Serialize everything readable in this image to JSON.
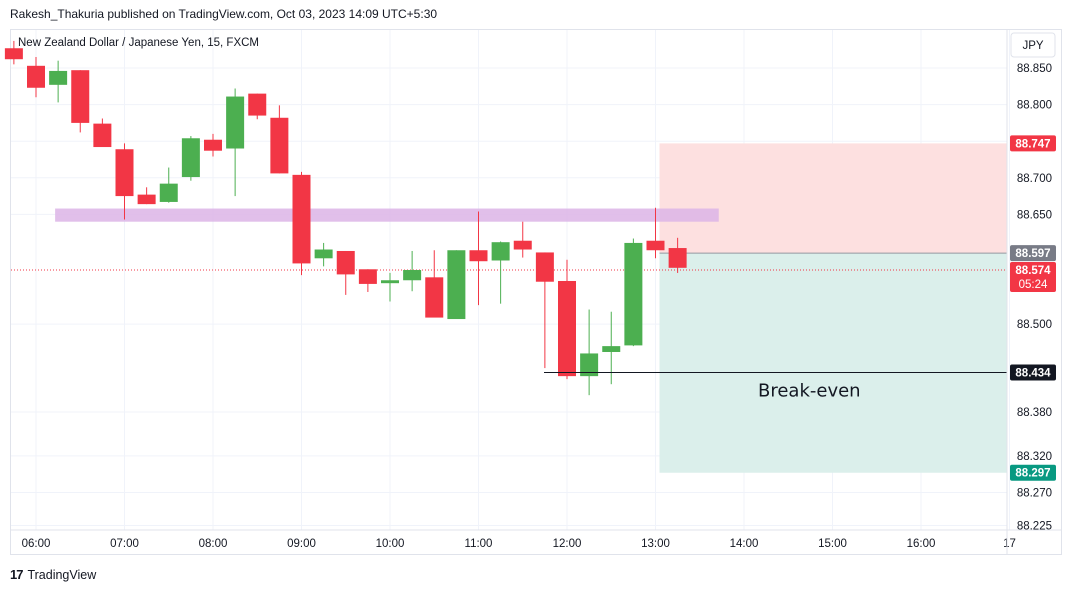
{
  "header": {
    "published_line": "Rakesh_Thakuria published on TradingView.com, Oct 03, 2023 14:09 UTC+5:30"
  },
  "footer": {
    "brand": "TradingView",
    "logo_glyph": "17"
  },
  "chart_data": {
    "type": "candlestick",
    "title": "New Zealand Dollar / Japanese Yen, 15, FXCM",
    "currency_button": "JPY",
    "x_tick_labels": [
      "06:00",
      "07:00",
      "08:00",
      "09:00",
      "10:00",
      "11:00",
      "12:00",
      "13:00",
      "14:00",
      "15:00",
      "16:00",
      "17"
    ],
    "y_tick_labels": [
      "88.850",
      "88.800",
      "88.750",
      "88.700",
      "88.650",
      "88.500",
      "88.380",
      "88.320",
      "88.270",
      "88.225"
    ],
    "ylim": [
      88.19,
      88.875
    ],
    "colors": {
      "up": "#4caf50",
      "down": "#f23645",
      "resistance_zone": "#dcb4e6",
      "stop_zone": "#fde0e0",
      "target_zone": "#dbefeb",
      "grid": "#f0f3fa"
    },
    "candles": [
      {
        "time": "05:45",
        "open": 88.877,
        "high": 88.887,
        "low": 88.855,
        "close": 88.862
      },
      {
        "time": "06:00",
        "open": 88.853,
        "high": 88.865,
        "low": 88.81,
        "close": 88.823
      },
      {
        "time": "06:15",
        "open": 88.827,
        "high": 88.86,
        "low": 88.803,
        "close": 88.846
      },
      {
        "time": "06:30",
        "open": 88.847,
        "high": 88.847,
        "low": 88.762,
        "close": 88.775
      },
      {
        "time": "06:45",
        "open": 88.774,
        "high": 88.781,
        "low": 88.743,
        "close": 88.742
      },
      {
        "time": "07:00",
        "open": 88.739,
        "high": 88.747,
        "low": 88.643,
        "close": 88.675
      },
      {
        "time": "07:15",
        "open": 88.677,
        "high": 88.687,
        "low": 88.664,
        "close": 88.664
      },
      {
        "time": "07:30",
        "open": 88.667,
        "high": 88.714,
        "low": 88.666,
        "close": 88.692
      },
      {
        "time": "07:45",
        "open": 88.701,
        "high": 88.757,
        "low": 88.696,
        "close": 88.754
      },
      {
        "time": "08:00",
        "open": 88.752,
        "high": 88.76,
        "low": 88.729,
        "close": 88.737
      },
      {
        "time": "08:15",
        "open": 88.74,
        "high": 88.822,
        "low": 88.675,
        "close": 88.811
      },
      {
        "time": "08:30",
        "open": 88.815,
        "high": 88.815,
        "low": 88.78,
        "close": 88.785
      },
      {
        "time": "08:45",
        "open": 88.782,
        "high": 88.799,
        "low": 88.706,
        "close": 88.706
      },
      {
        "time": "09:00",
        "open": 88.704,
        "high": 88.708,
        "low": 88.567,
        "close": 88.583
      },
      {
        "time": "09:15",
        "open": 88.59,
        "high": 88.611,
        "low": 88.579,
        "close": 88.602
      },
      {
        "time": "09:30",
        "open": 88.6,
        "high": 88.6,
        "low": 88.54,
        "close": 88.568
      },
      {
        "time": "09:45",
        "open": 88.575,
        "high": 88.575,
        "low": 88.544,
        "close": 88.555
      },
      {
        "time": "10:00",
        "open": 88.556,
        "high": 88.57,
        "low": 88.531,
        "close": 88.56
      },
      {
        "time": "10:15",
        "open": 88.56,
        "high": 88.6,
        "low": 88.545,
        "close": 88.574
      },
      {
        "time": "10:30",
        "open": 88.564,
        "high": 88.601,
        "low": 88.51,
        "close": 88.509
      },
      {
        "time": "10:45",
        "open": 88.507,
        "high": 88.601,
        "low": 88.509,
        "close": 88.601
      },
      {
        "time": "11:00",
        "open": 88.601,
        "high": 88.654,
        "low": 88.526,
        "close": 88.586
      },
      {
        "time": "11:15",
        "open": 88.587,
        "high": 88.613,
        "low": 88.528,
        "close": 88.612
      },
      {
        "time": "11:30",
        "open": 88.614,
        "high": 88.64,
        "low": 88.591,
        "close": 88.602
      },
      {
        "time": "11:45",
        "open": 88.598,
        "high": 88.598,
        "low": 88.44,
        "close": 88.558
      },
      {
        "time": "12:00",
        "open": 88.559,
        "high": 88.588,
        "low": 88.425,
        "close": 88.429
      },
      {
        "time": "12:15",
        "open": 88.429,
        "high": 88.52,
        "low": 88.403,
        "close": 88.46
      },
      {
        "time": "12:30",
        "open": 88.462,
        "high": 88.517,
        "low": 88.418,
        "close": 88.47
      },
      {
        "time": "12:45",
        "open": 88.471,
        "high": 88.617,
        "low": 88.47,
        "close": 88.611
      },
      {
        "time": "13:00",
        "open": 88.614,
        "high": 88.659,
        "low": 88.59,
        "close": 88.601
      },
      {
        "time": "13:15",
        "open": 88.604,
        "high": 88.618,
        "low": 88.57,
        "close": 88.577
      }
    ],
    "resistance_zone": {
      "from": 88.658,
      "to": 88.64,
      "time_start": "06:15",
      "time_end": "13:30"
    },
    "position": {
      "entry": 88.597,
      "stop": 88.747,
      "target": 88.297,
      "time_start": "13:00",
      "time_end": "17:00"
    },
    "break_even": {
      "price": 88.434,
      "label": "Break-even",
      "time_start": "12:00"
    },
    "last_price": {
      "value": "88.574",
      "countdown": "05:24"
    },
    "price_labels": {
      "stop": "88.747",
      "entry": "88.597",
      "break_even": "88.434",
      "target": "88.297"
    }
  }
}
